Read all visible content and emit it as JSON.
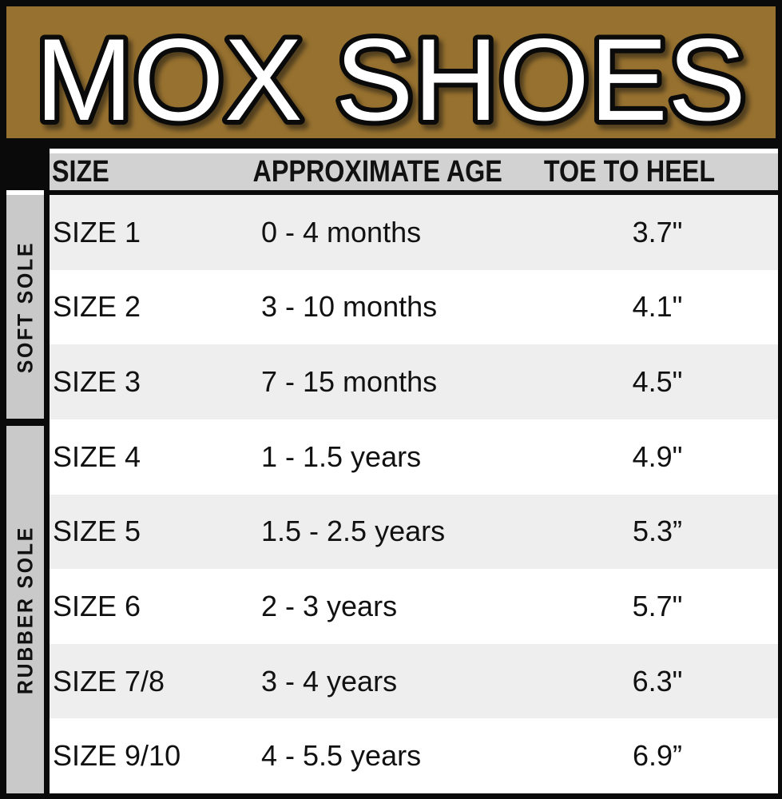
{
  "banner": {
    "title": "MOX SHOES"
  },
  "colors": {
    "banner_brown": "#97712f",
    "frame_black": "#0a0a0a",
    "header_gray": "#d2d2d2",
    "sidebar_gray": "#c9c9c9",
    "row_alt_gray": "#eeeeee",
    "row_white": "#ffffff",
    "text": "#111111"
  },
  "table": {
    "headers": [
      "SIZE",
      "APPROXIMATE AGE",
      "TOE TO HEEL"
    ],
    "side_groups": [
      {
        "label": "SOFT SOLE"
      },
      {
        "label": "RUBBER SOLE"
      }
    ],
    "rows": [
      {
        "size": "SIZE 1",
        "age": "0 - 4 months",
        "toe_to_heel": "3.7\""
      },
      {
        "size": "SIZE 2",
        "age": "3 - 10 months",
        "toe_to_heel": "4.1\""
      },
      {
        "size": "SIZE 3",
        "age": "7 - 15 months",
        "toe_to_heel": "4.5\""
      },
      {
        "size": "SIZE 4",
        "age": "1 - 1.5 years",
        "toe_to_heel": "4.9\""
      },
      {
        "size": "SIZE 5",
        "age": "1.5 - 2.5 years",
        "toe_to_heel": "5.3”"
      },
      {
        "size": "SIZE 6",
        "age": "2 - 3 years",
        "toe_to_heel": "5.7\""
      },
      {
        "size": "SIZE 7/8",
        "age": "3 - 4 years",
        "toe_to_heel": "6.3\""
      },
      {
        "size": "SIZE 9/10",
        "age": "4 - 5.5 years",
        "toe_to_heel": "6.9”"
      }
    ]
  },
  "chart_data": {
    "type": "table",
    "title": "MOX SHOES",
    "columns": [
      "SIZE",
      "APPROXIMATE AGE",
      "TOE TO HEEL"
    ],
    "row_groups": [
      {
        "group": "SOFT SOLE",
        "rows": [
          [
            "SIZE 1",
            "0 - 4 months",
            "3.7\""
          ],
          [
            "SIZE 2",
            "3 - 10 months",
            "4.1\""
          ],
          [
            "SIZE 3",
            "7 - 15 months",
            "4.5\""
          ]
        ]
      },
      {
        "group": "RUBBER SOLE",
        "rows": [
          [
            "SIZE 4",
            "1 - 1.5 years",
            "4.9\""
          ],
          [
            "SIZE 5",
            "1.5 - 2.5 years",
            "5.3”"
          ],
          [
            "SIZE 6",
            "2 - 3 years",
            "5.7\""
          ],
          [
            "SIZE 7/8",
            "3 - 4 years",
            "6.3\""
          ],
          [
            "SIZE 9/10",
            "4 - 5.5 years",
            "6.9”"
          ]
        ]
      }
    ]
  }
}
